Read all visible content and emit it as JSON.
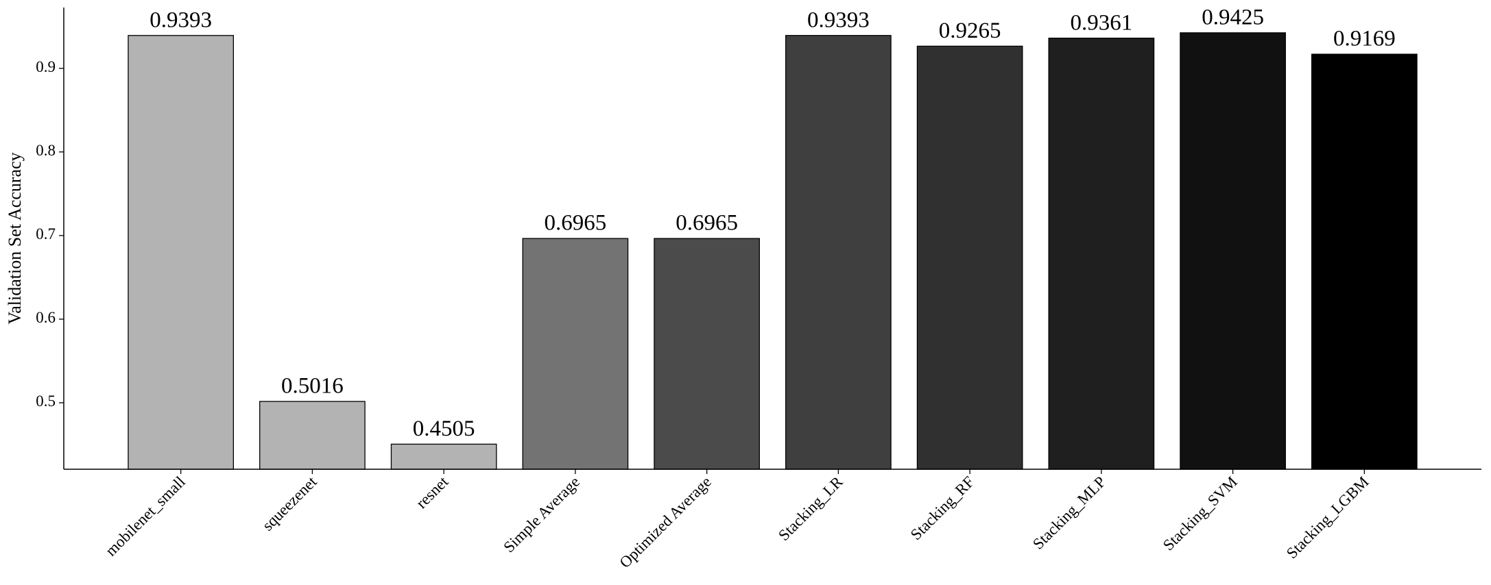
{
  "chart_data": {
    "type": "bar",
    "y_label": "Validation Set Accuracy",
    "categories": [
      "mobilenet_small",
      "squeezenet",
      "resnet",
      "Simple Average",
      "Optimized Average",
      "Stacking_LR",
      "Stacking_RF",
      "Stacking_MLP",
      "Stacking_SVM",
      "Stacking_LGBM"
    ],
    "values": [
      0.9393,
      0.5016,
      0.4505,
      0.6965,
      0.6965,
      0.9393,
      0.9265,
      0.9361,
      0.9425,
      0.9169
    ],
    "colors": [
      "#b3b3b3",
      "#b3b3b3",
      "#b3b3b3",
      "#737373",
      "#4b4b4b",
      "#3f3f3f",
      "#303030",
      "#1f1f1f",
      "#111111",
      "#000000"
    ],
    "ylim": [
      0.4205,
      0.9727
    ],
    "yticks": [
      0.5,
      0.6,
      0.7,
      0.8,
      0.9
    ],
    "grid": false
  }
}
